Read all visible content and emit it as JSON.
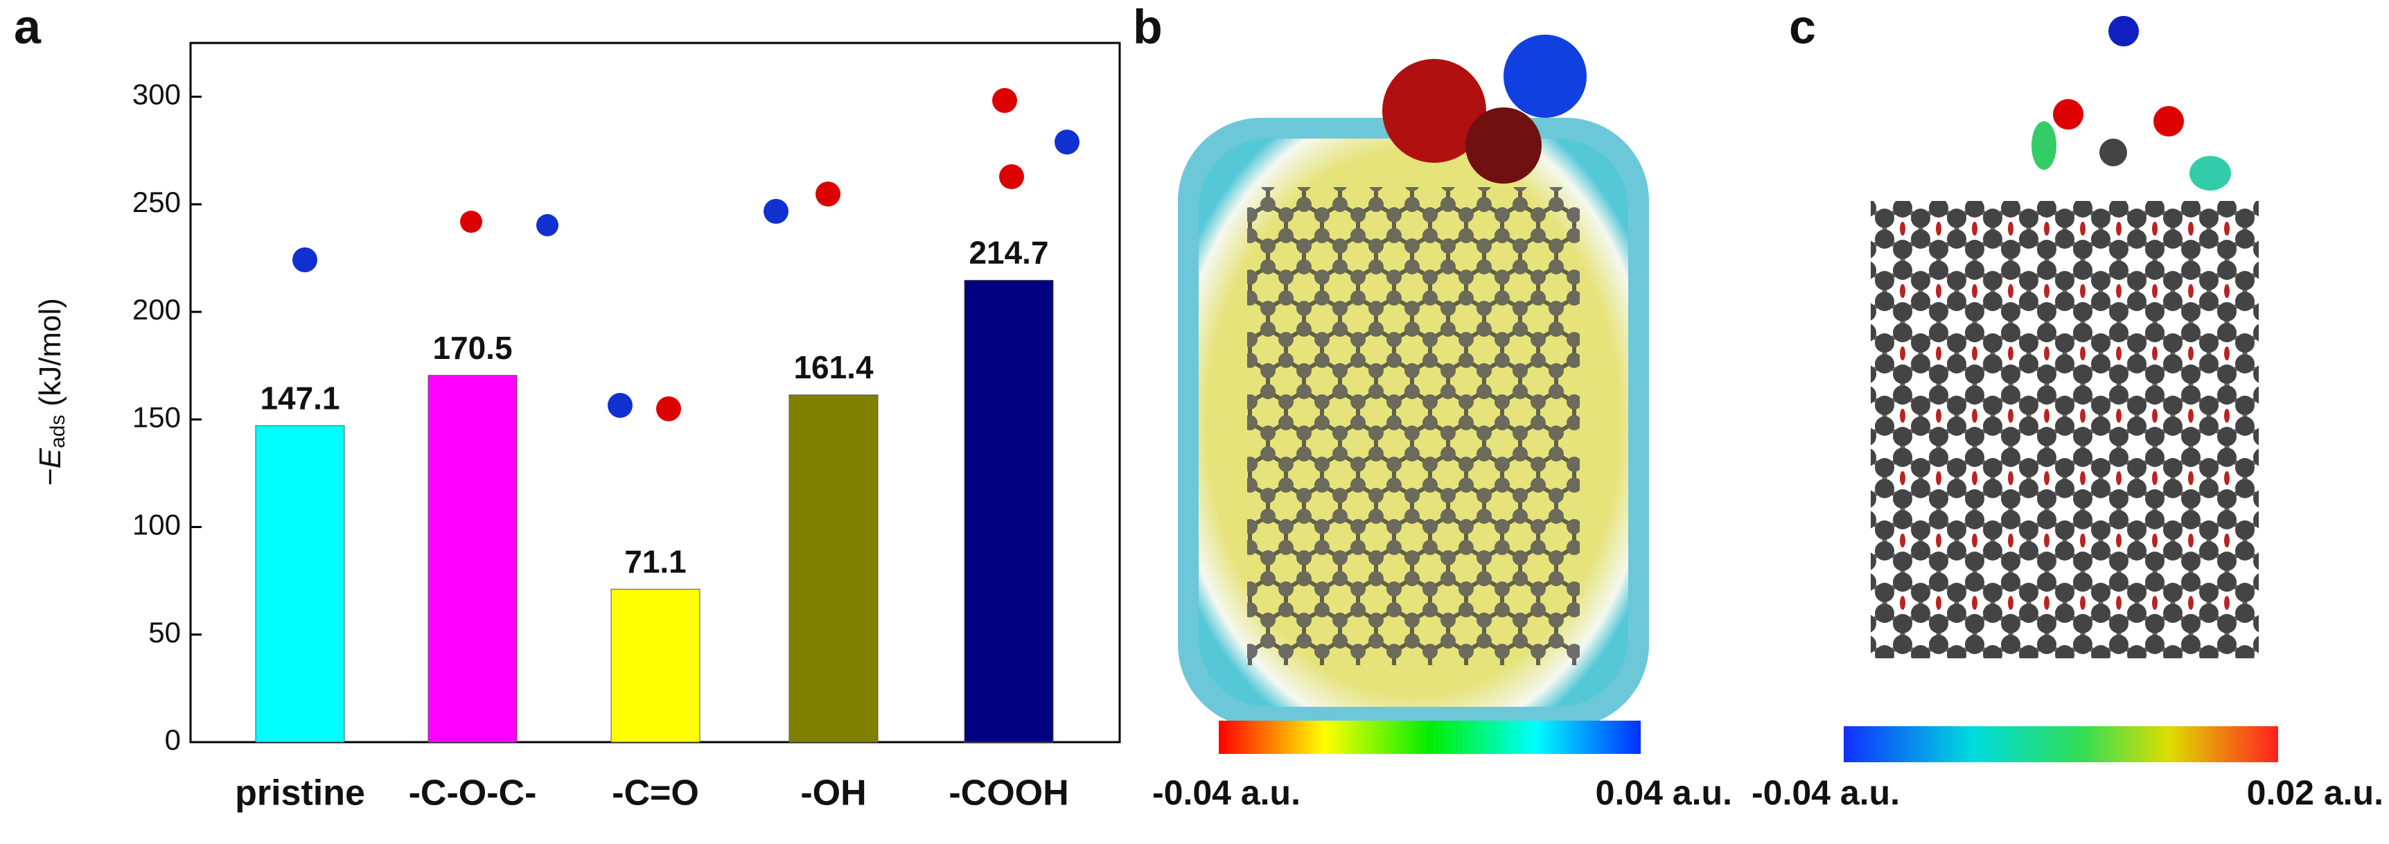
{
  "chart_data": {
    "type": "bar",
    "ylabel_main": "−E",
    "ylabel_sub": "ads",
    "ylabel_unit": "(kJ/mol)",
    "categories": [
      "pristine",
      "-C-O-C-",
      "-C=O",
      "-OH",
      "-COOH"
    ],
    "values": [
      147.1,
      170.5,
      71.1,
      161.4,
      214.7
    ],
    "colors": [
      "#00ffff",
      "#ff00ff",
      "#ffff00",
      "#808000",
      "#000080"
    ],
    "ylim": [
      0,
      325
    ],
    "yticks": [
      0,
      50,
      100,
      150,
      200,
      250,
      300
    ]
  },
  "panel_labels": [
    "a",
    "b",
    "c"
  ],
  "colorbars": [
    {
      "min_label": "-0.04 a.u.",
      "max_label": "0.04 a.u."
    },
    {
      "min_label": "-0.04 a.u.",
      "max_label": "0.02 a.u."
    }
  ]
}
